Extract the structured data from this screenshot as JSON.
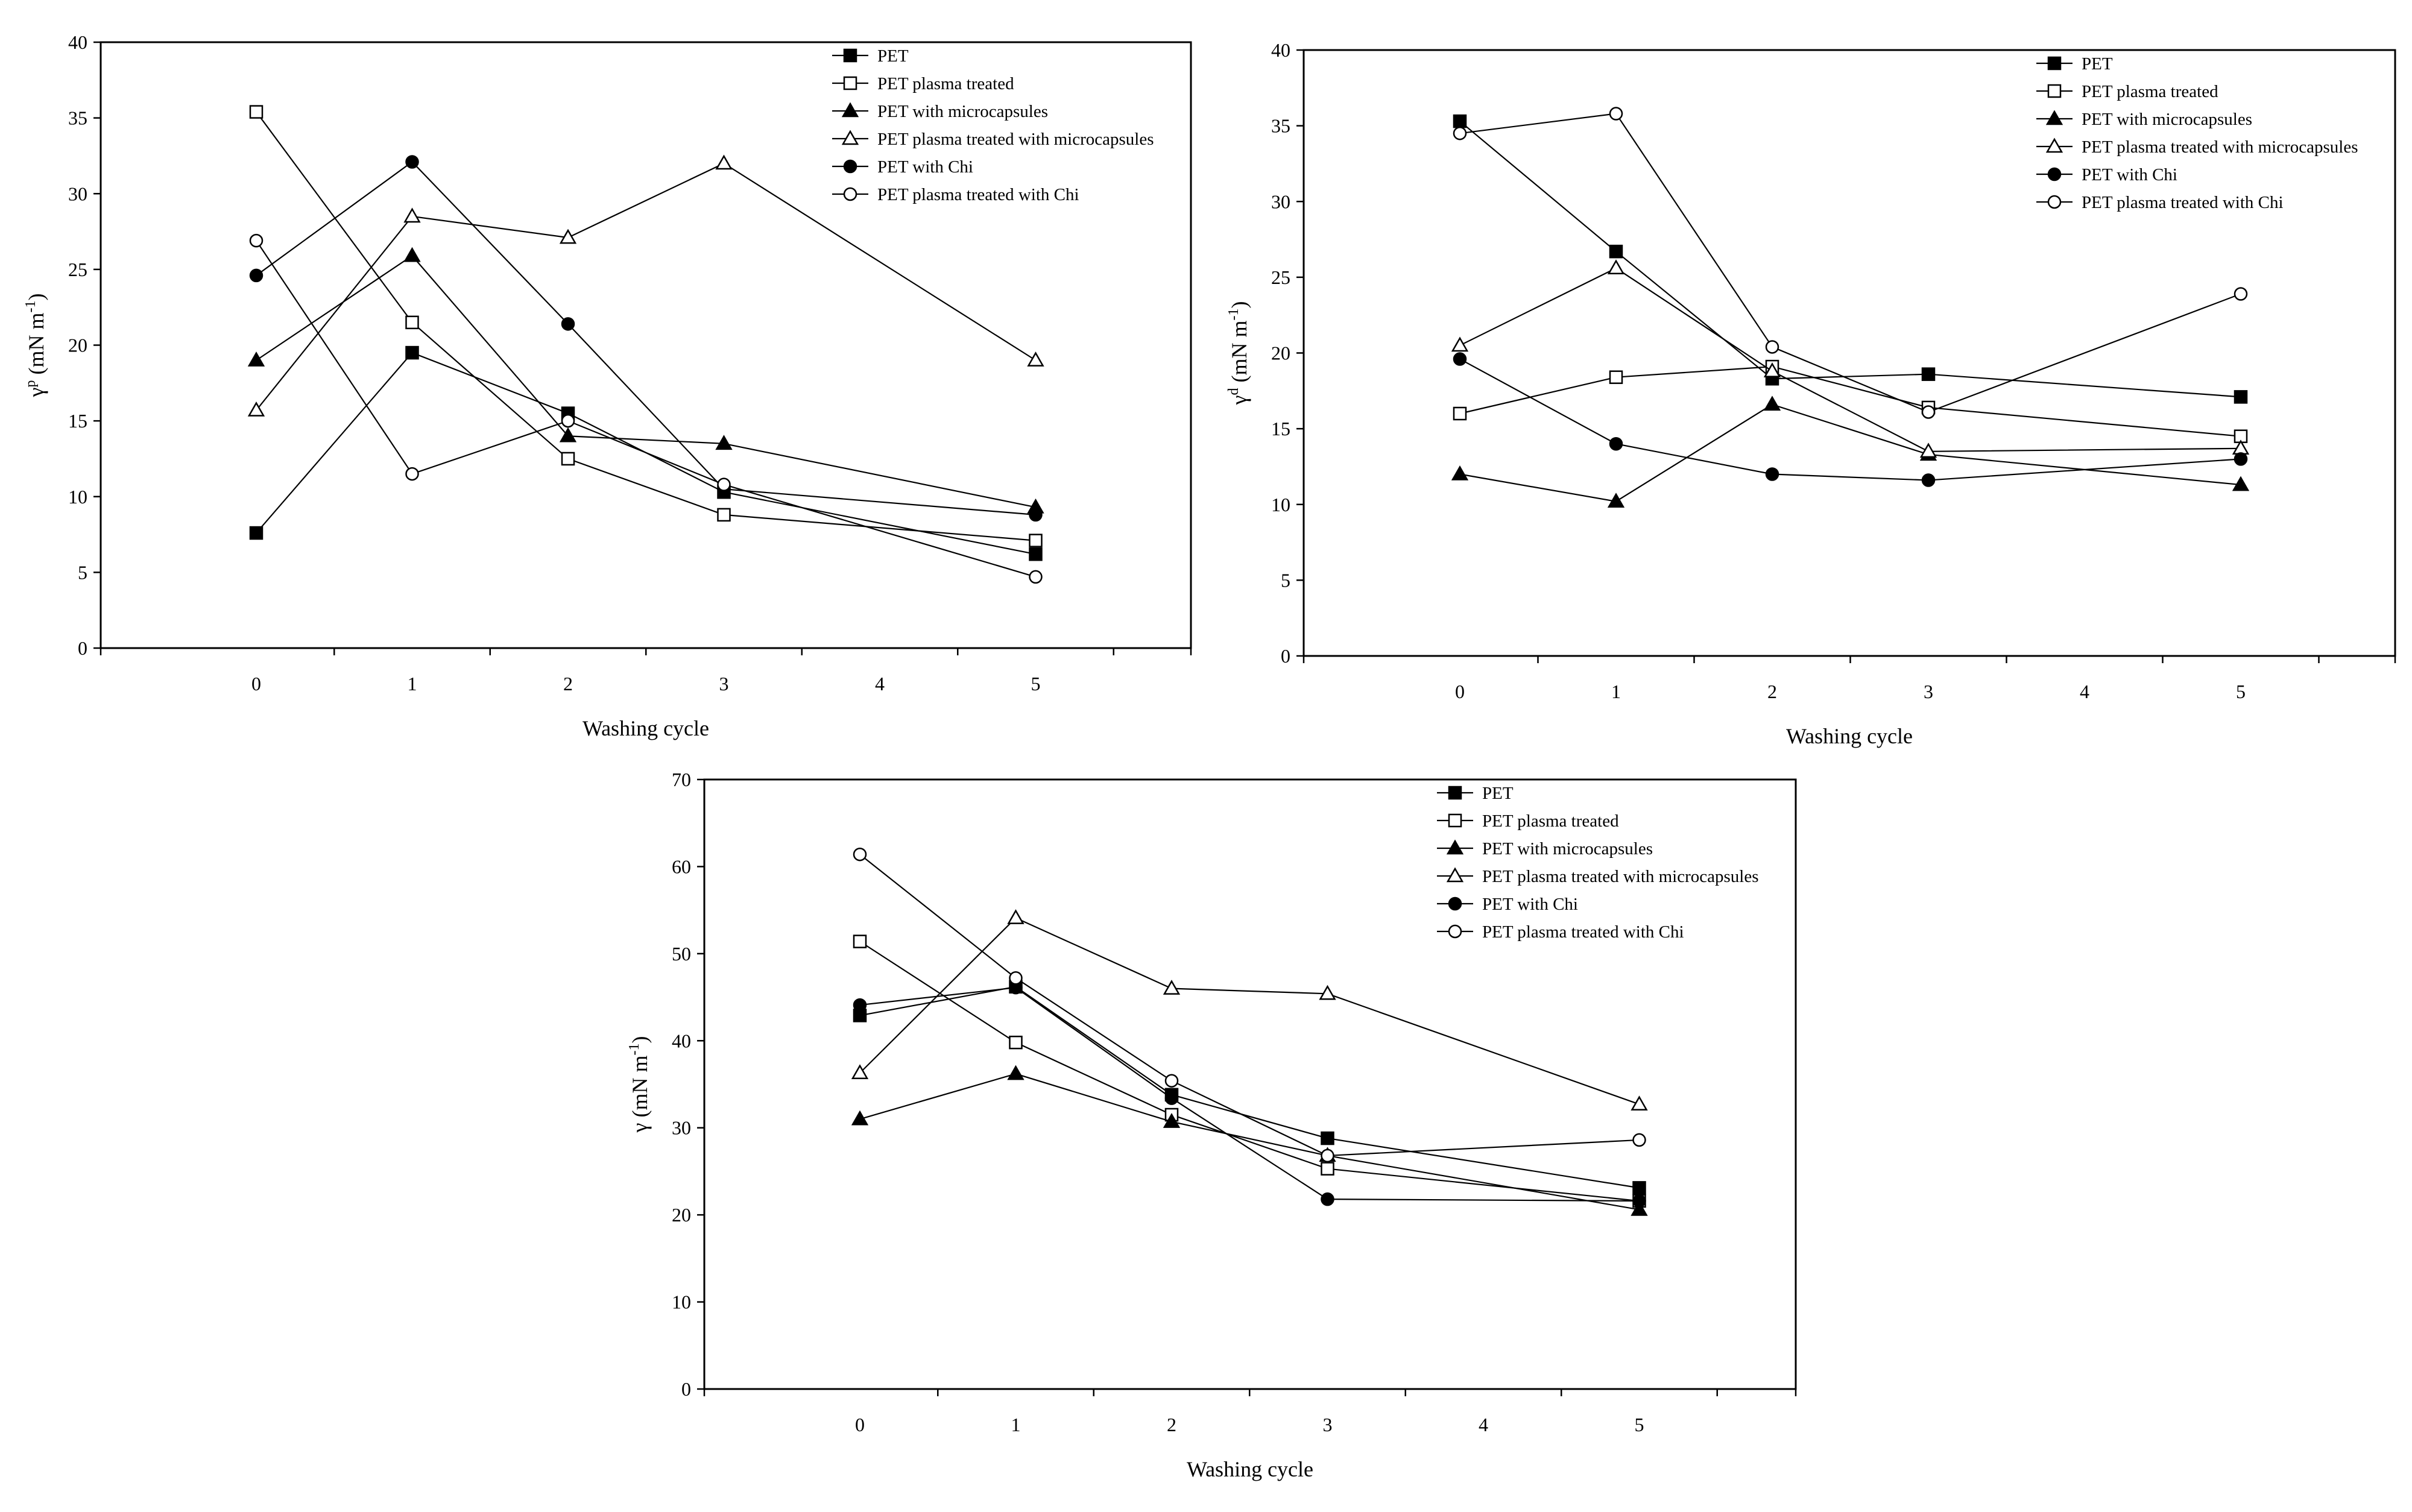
{
  "chart_data": [
    {
      "type": "line",
      "id": "gamma-p",
      "title": "",
      "xlabel": "Washing cycle",
      "ylabel": {
        "symbol": "γ",
        "sup": "p",
        "units": "(mN m",
        "units_sup": "-1",
        "close": ")"
      },
      "x_ticks": [
        0,
        1,
        2,
        3,
        4,
        5
      ],
      "ylim": [
        0,
        40
      ],
      "y_ticks": [
        0,
        5,
        10,
        15,
        20,
        25,
        30,
        35,
        40
      ],
      "legend_position": "top-right",
      "series": [
        {
          "name": "PET",
          "marker": "square",
          "filled": true,
          "x": [
            0,
            1,
            2,
            3,
            5
          ],
          "values": [
            7.6,
            19.5,
            15.5,
            10.3,
            6.2
          ]
        },
        {
          "name": "PET plasma treated",
          "marker": "square",
          "filled": false,
          "x": [
            0,
            1,
            2,
            3,
            5
          ],
          "values": [
            35.4,
            21.5,
            12.5,
            8.8,
            7.1
          ]
        },
        {
          "name": "PET with microcapsules",
          "marker": "triangle",
          "filled": true,
          "x": [
            0,
            1,
            2,
            3,
            5
          ],
          "values": [
            19.0,
            25.9,
            14.0,
            13.5,
            9.3
          ]
        },
        {
          "name": "PET plasma treated with microcapsules",
          "marker": "triangle",
          "filled": false,
          "x": [
            0,
            1,
            2,
            3,
            5
          ],
          "values": [
            15.7,
            28.5,
            27.1,
            32.0,
            19.0
          ]
        },
        {
          "name": "PET with Chi",
          "marker": "circle",
          "filled": true,
          "x": [
            0,
            1,
            2,
            3,
            5
          ],
          "values": [
            24.6,
            32.1,
            21.4,
            10.5,
            8.8
          ]
        },
        {
          "name": "PET plasma treated with Chi",
          "marker": "circle",
          "filled": false,
          "x": [
            0,
            1,
            2,
            3,
            5
          ],
          "values": [
            26.9,
            11.5,
            15.0,
            10.8,
            4.7
          ]
        }
      ]
    },
    {
      "type": "line",
      "id": "gamma-d",
      "title": "",
      "xlabel": "Washing cycle",
      "ylabel": {
        "symbol": "γ",
        "sup": "d",
        "units": "(mN m",
        "units_sup": "-1",
        "close": ")"
      },
      "x_ticks": [
        0,
        1,
        2,
        3,
        4,
        5
      ],
      "ylim": [
        0,
        40
      ],
      "y_ticks": [
        0,
        5,
        10,
        15,
        20,
        25,
        30,
        35,
        40
      ],
      "legend_position": "top-right",
      "series": [
        {
          "name": "PET",
          "marker": "square",
          "filled": true,
          "x": [
            0,
            1,
            2,
            3,
            5
          ],
          "values": [
            35.3,
            26.7,
            18.3,
            18.6,
            17.1
          ]
        },
        {
          "name": "PET plasma treated",
          "marker": "square",
          "filled": false,
          "x": [
            0,
            1,
            2,
            3,
            5
          ],
          "values": [
            16.0,
            18.4,
            19.1,
            16.4,
            14.5
          ]
        },
        {
          "name": "PET with microcapsules",
          "marker": "triangle",
          "filled": true,
          "x": [
            0,
            1,
            2,
            3,
            5
          ],
          "values": [
            12.0,
            10.2,
            16.6,
            13.3,
            11.3
          ]
        },
        {
          "name": "PET plasma treated with microcapsules",
          "marker": "triangle",
          "filled": false,
          "x": [
            0,
            1,
            2,
            3,
            5
          ],
          "values": [
            20.5,
            25.6,
            18.8,
            13.5,
            13.7
          ]
        },
        {
          "name": "PET with Chi",
          "marker": "circle",
          "filled": true,
          "x": [
            0,
            1,
            2,
            3,
            5
          ],
          "values": [
            19.6,
            14.0,
            12.0,
            11.6,
            13.0
          ]
        },
        {
          "name": "PET plasma treated with Chi",
          "marker": "circle",
          "filled": false,
          "x": [
            0,
            1,
            2,
            3,
            5
          ],
          "values": [
            34.5,
            35.8,
            20.4,
            16.1,
            23.9
          ]
        }
      ]
    },
    {
      "type": "line",
      "id": "gamma",
      "title": "",
      "xlabel": "Washing cycle",
      "ylabel": {
        "symbol": "γ",
        "sup": "",
        "units": "(mN m",
        "units_sup": "-1",
        "close": ")"
      },
      "x_ticks": [
        0,
        1,
        2,
        3,
        4,
        5
      ],
      "ylim": [
        0,
        70
      ],
      "y_ticks": [
        0,
        10,
        20,
        30,
        40,
        50,
        60,
        70
      ],
      "legend_position": "top-right",
      "series": [
        {
          "name": "PET",
          "marker": "square",
          "filled": true,
          "x": [
            0,
            1,
            2,
            3,
            5
          ],
          "values": [
            42.9,
            46.2,
            33.8,
            28.8,
            23.1
          ]
        },
        {
          "name": "PET plasma treated",
          "marker": "square",
          "filled": false,
          "x": [
            0,
            1,
            2,
            3,
            5
          ],
          "values": [
            51.4,
            39.8,
            31.5,
            25.3,
            21.6
          ]
        },
        {
          "name": "PET with microcapsules",
          "marker": "triangle",
          "filled": true,
          "x": [
            0,
            1,
            2,
            3,
            5
          ],
          "values": [
            31.0,
            36.2,
            30.7,
            26.8,
            20.6
          ]
        },
        {
          "name": "PET plasma treated with microcapsules",
          "marker": "triangle",
          "filled": false,
          "x": [
            0,
            1,
            2,
            3,
            5
          ],
          "values": [
            36.3,
            54.1,
            46.0,
            45.4,
            32.7
          ]
        },
        {
          "name": "PET with Chi",
          "marker": "circle",
          "filled": true,
          "x": [
            0,
            1,
            2,
            3,
            5
          ],
          "values": [
            44.1,
            46.1,
            33.4,
            21.8,
            21.6
          ]
        },
        {
          "name": "PET plasma treated with Chi",
          "marker": "circle",
          "filled": false,
          "x": [
            0,
            1,
            2,
            3,
            5
          ],
          "values": [
            61.4,
            47.2,
            35.4,
            26.8,
            28.6
          ]
        }
      ]
    }
  ]
}
